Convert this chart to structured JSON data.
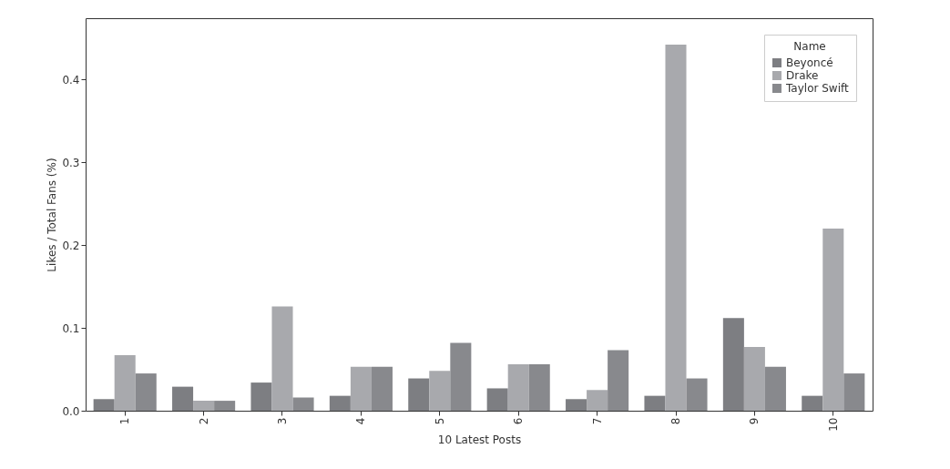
{
  "chart_data": {
    "type": "bar",
    "xlabel": "10 Latest Posts",
    "ylabel": "Likes / Total Fans (%)",
    "legend_title": "Name",
    "legend": "top right",
    "grid": false,
    "categories": [
      "1",
      "2",
      "3",
      "4",
      "5",
      "6",
      "7",
      "8",
      "9",
      "10"
    ],
    "series": [
      {
        "name": "Beyoncé",
        "color": "#7d7e82",
        "values": [
          0.014,
          0.029,
          0.034,
          0.018,
          0.039,
          0.027,
          0.014,
          0.018,
          0.112,
          0.018
        ]
      },
      {
        "name": "Drake",
        "color": "#a8a9ad",
        "values": [
          0.067,
          0.012,
          0.126,
          0.053,
          0.048,
          0.056,
          0.025,
          0.442,
          0.077,
          0.22
        ]
      },
      {
        "name": "Taylor Swift",
        "color": "#88898d",
        "values": [
          0.045,
          0.012,
          0.016,
          0.053,
          0.082,
          0.056,
          0.073,
          0.039,
          0.053,
          0.045
        ]
      }
    ],
    "ylim": [
      0,
      0.474
    ],
    "yticks": [
      {
        "value": 0,
        "label": "0.0"
      },
      0.1,
      0.2,
      0.3,
      0.4
    ]
  }
}
